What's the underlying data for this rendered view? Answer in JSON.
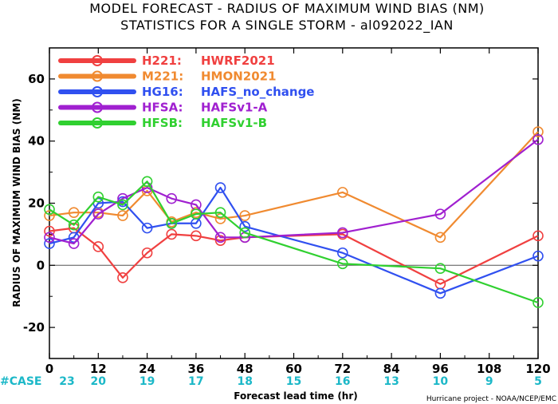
{
  "chart_data": {
    "type": "line",
    "title": "MODEL FORECAST - RADIUS OF MAXIMUM WIND BIAS (NM)",
    "subtitle": "STATISTICS FOR A SINGLE STORM - al092022_IAN",
    "xlabel": "Forecast lead time (hr)",
    "ylabel": "RADIUS OF MAXIMUM WIND BIAS (NM)",
    "xlim": [
      0,
      120
    ],
    "ylim": [
      -30,
      70
    ],
    "xticks": [
      "0",
      "12",
      "24",
      "36",
      "48",
      "60",
      "72",
      "84",
      "96",
      "108",
      "120"
    ],
    "yticks": [
      "-20",
      "0",
      "20",
      "40",
      "60"
    ],
    "case_label": "#CASE",
    "cases": [
      {
        "x": 0,
        "n": "23"
      },
      {
        "x": 12,
        "n": "20"
      },
      {
        "x": 24,
        "n": "19"
      },
      {
        "x": 36,
        "n": "17"
      },
      {
        "x": 48,
        "n": "18"
      },
      {
        "x": 60,
        "n": "15"
      },
      {
        "x": 72,
        "n": "16"
      },
      {
        "x": 84,
        "n": "13"
      },
      {
        "x": 96,
        "n": "10"
      },
      {
        "x": 108,
        "n": "9"
      },
      {
        "x": 120,
        "n": "5"
      }
    ],
    "legend_placement": "top-left",
    "series": [
      {
        "id": "H221",
        "name": "HWRF2021",
        "color": "#f04040",
        "x": [
          0,
          6,
          12,
          18,
          24,
          30,
          36,
          42,
          48,
          72,
          96,
          120
        ],
        "y": [
          11,
          12,
          6,
          -4,
          4,
          10,
          9.5,
          8,
          9,
          10,
          -6,
          9.5
        ]
      },
      {
        "id": "M221",
        "name": "HMON2021",
        "color": "#f08a30",
        "x": [
          0,
          6,
          12,
          18,
          24,
          30,
          36,
          42,
          48,
          72,
          96,
          120
        ],
        "y": [
          16,
          17,
          17,
          16,
          24,
          14,
          17,
          15,
          16,
          23.5,
          9,
          43
        ]
      },
      {
        "id": "HG16",
        "name": "HAFS_no_change",
        "color": "#3050f0",
        "x": [
          0,
          6,
          12,
          18,
          24,
          30,
          36,
          42,
          48,
          72,
          96,
          120
        ],
        "y": [
          7,
          9,
          20,
          20.5,
          12,
          13.5,
          13.5,
          25,
          12.5,
          4,
          -9,
          3
        ]
      },
      {
        "id": "HFSA",
        "name": "HAFSv1-A",
        "color": "#a020d0",
        "x": [
          0,
          6,
          12,
          18,
          24,
          30,
          36,
          42,
          48,
          72,
          96,
          120
        ],
        "y": [
          9,
          7,
          16.5,
          21.5,
          25,
          21.5,
          19.5,
          9,
          9,
          10.5,
          16.5,
          40.5
        ]
      },
      {
        "id": "HFSB",
        "name": "HAFSv1-B",
        "color": "#30d030",
        "x": [
          0,
          6,
          12,
          18,
          24,
          30,
          36,
          42,
          48,
          72,
          96,
          120
        ],
        "y": [
          18,
          13,
          22,
          19.5,
          27,
          13.5,
          16.5,
          17,
          10.5,
          0.5,
          -1,
          -12
        ]
      }
    ]
  },
  "credit": "Hurricane project - NOAA/NCEP/EMC"
}
